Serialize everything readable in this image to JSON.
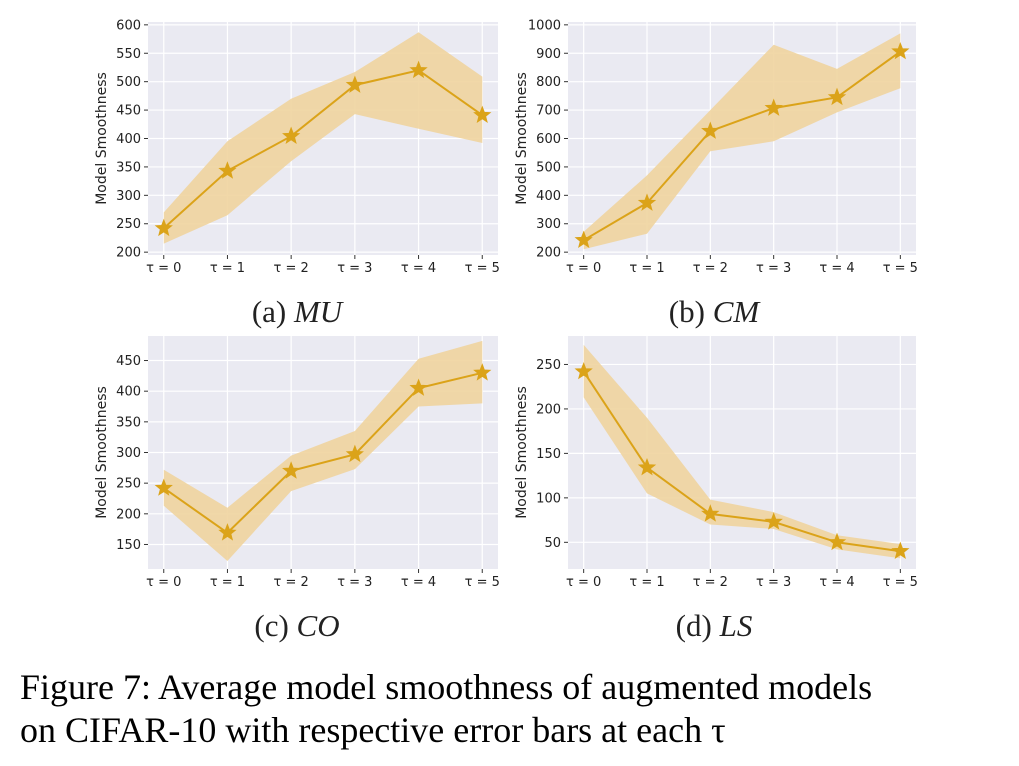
{
  "figure": {
    "caption_line1": "Figure 7: Average model smoothness of augmented models",
    "caption_line2": "on CIFAR-10 with respective error bars at each τ"
  },
  "colors": {
    "plot_bg": "#eaeaf2",
    "grid": "#ffffff",
    "line": "#dba319",
    "band": "#f0d49e"
  },
  "chart_data": [
    {
      "type": "line",
      "panel": "a",
      "subtitle_prefix": "(a)",
      "subtitle_name": "MU",
      "ylabel": "Model Smoothness",
      "xlabel": "",
      "categories": [
        "τ = 0",
        "τ = 1",
        "τ = 2",
        "τ = 3",
        "τ = 4",
        "τ = 5"
      ],
      "yticks": [
        200,
        250,
        300,
        350,
        400,
        450,
        500,
        550,
        600
      ],
      "ylim": [
        195,
        605
      ],
      "grid": true,
      "series": [
        {
          "name": "mean",
          "values": [
            242,
            343,
            404,
            494,
            520,
            441
          ],
          "lower": [
            215,
            265,
            360,
            443,
            417,
            392
          ],
          "upper": [
            270,
            395,
            470,
            517,
            587,
            509
          ]
        }
      ]
    },
    {
      "type": "line",
      "panel": "b",
      "subtitle_prefix": "(b)",
      "subtitle_name": "CM",
      "ylabel": "Model Smoothness",
      "xlabel": "",
      "categories": [
        "τ = 0",
        "τ = 1",
        "τ = 2",
        "τ = 3",
        "τ = 4",
        "τ = 5"
      ],
      "yticks": [
        200,
        300,
        400,
        500,
        600,
        700,
        800,
        900,
        1000
      ],
      "ylim": [
        190,
        1010
      ],
      "grid": true,
      "series": [
        {
          "name": "mean",
          "values": [
            242,
            373,
            626,
            707,
            745,
            906
          ],
          "lower": [
            210,
            265,
            555,
            590,
            692,
            777
          ],
          "upper": [
            272,
            470,
            700,
            930,
            845,
            970
          ]
        }
      ]
    },
    {
      "type": "line",
      "panel": "c",
      "subtitle_prefix": "(c)",
      "subtitle_name": "CO",
      "ylabel": "Model Smoothness",
      "xlabel": "",
      "categories": [
        "τ = 0",
        "τ = 1",
        "τ = 2",
        "τ = 3",
        "τ = 4",
        "τ = 5"
      ],
      "yticks": [
        150,
        200,
        250,
        300,
        350,
        400,
        450
      ],
      "ylim": [
        110,
        490
      ],
      "grid": true,
      "series": [
        {
          "name": "mean",
          "values": [
            242,
            169,
            270,
            297,
            405,
            430
          ],
          "lower": [
            213,
            123,
            237,
            273,
            375,
            380
          ],
          "upper": [
            272,
            210,
            295,
            335,
            453,
            482
          ]
        }
      ]
    },
    {
      "type": "line",
      "panel": "d",
      "subtitle_prefix": "(d)",
      "subtitle_name": "LS",
      "ylabel": "Model Smoothness",
      "xlabel": "",
      "categories": [
        "τ = 0",
        "τ = 1",
        "τ = 2",
        "τ = 3",
        "τ = 4",
        "τ = 5"
      ],
      "yticks": [
        50,
        100,
        150,
        200,
        250
      ],
      "ylim": [
        20,
        282
      ],
      "grid": true,
      "series": [
        {
          "name": "mean",
          "values": [
            242,
            134,
            82,
            73,
            50,
            40
          ],
          "lower": [
            213,
            105,
            70,
            65,
            42,
            32
          ],
          "upper": [
            272,
            190,
            98,
            84,
            58,
            48
          ]
        }
      ]
    }
  ]
}
